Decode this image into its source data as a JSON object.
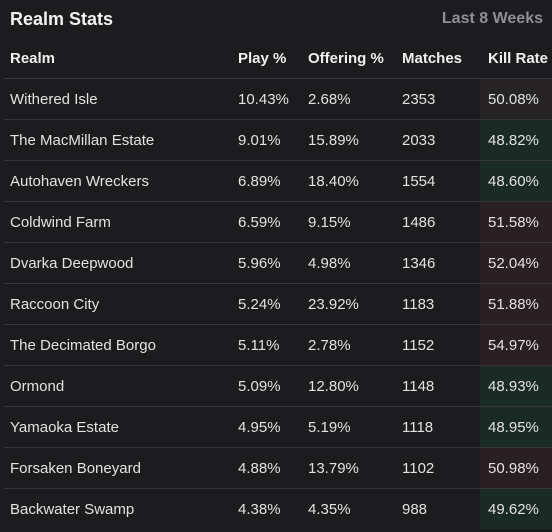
{
  "header": {
    "title": "Realm Stats",
    "period": "Last 8 Weeks"
  },
  "columns": {
    "realm": "Realm",
    "play": "Play %",
    "offering": "Offering %",
    "matches": "Matches",
    "kill_rate": "Kill Rate"
  },
  "rows": [
    {
      "realm": "Withered Isle",
      "play": "10.43%",
      "offering": "2.68%",
      "matches": "2353",
      "kill_rate": "50.08%"
    },
    {
      "realm": "The MacMillan Estate",
      "play": "9.01%",
      "offering": "15.89%",
      "matches": "2033",
      "kill_rate": "48.82%"
    },
    {
      "realm": "Autohaven Wreckers",
      "play": "6.89%",
      "offering": "18.40%",
      "matches": "1554",
      "kill_rate": "48.60%"
    },
    {
      "realm": "Coldwind Farm",
      "play": "6.59%",
      "offering": "9.15%",
      "matches": "1486",
      "kill_rate": "51.58%"
    },
    {
      "realm": "Dvarka Deepwood",
      "play": "5.96%",
      "offering": "4.98%",
      "matches": "1346",
      "kill_rate": "52.04%"
    },
    {
      "realm": "Raccoon City",
      "play": "5.24%",
      "offering": "23.92%",
      "matches": "1183",
      "kill_rate": "51.88%"
    },
    {
      "realm": "The Decimated Borgo",
      "play": "5.11%",
      "offering": "2.78%",
      "matches": "1152",
      "kill_rate": "54.97%"
    },
    {
      "realm": "Ormond",
      "play": "5.09%",
      "offering": "12.80%",
      "matches": "1148",
      "kill_rate": "48.93%"
    },
    {
      "realm": "Yamaoka Estate",
      "play": "4.95%",
      "offering": "5.19%",
      "matches": "1118",
      "kill_rate": "48.95%"
    },
    {
      "realm": "Forsaken Boneyard",
      "play": "4.88%",
      "offering": "13.79%",
      "matches": "1102",
      "kill_rate": "50.98%"
    },
    {
      "realm": "Backwater Swamp",
      "play": "4.38%",
      "offering": "4.35%",
      "matches": "988",
      "kill_rate": "49.62%"
    }
  ],
  "colors": {
    "background": "#1c1c1f",
    "kill_rate_high": "#2a1f22",
    "kill_rate_low": "#1a2a24",
    "kill_rate_neutral": "#262325"
  }
}
